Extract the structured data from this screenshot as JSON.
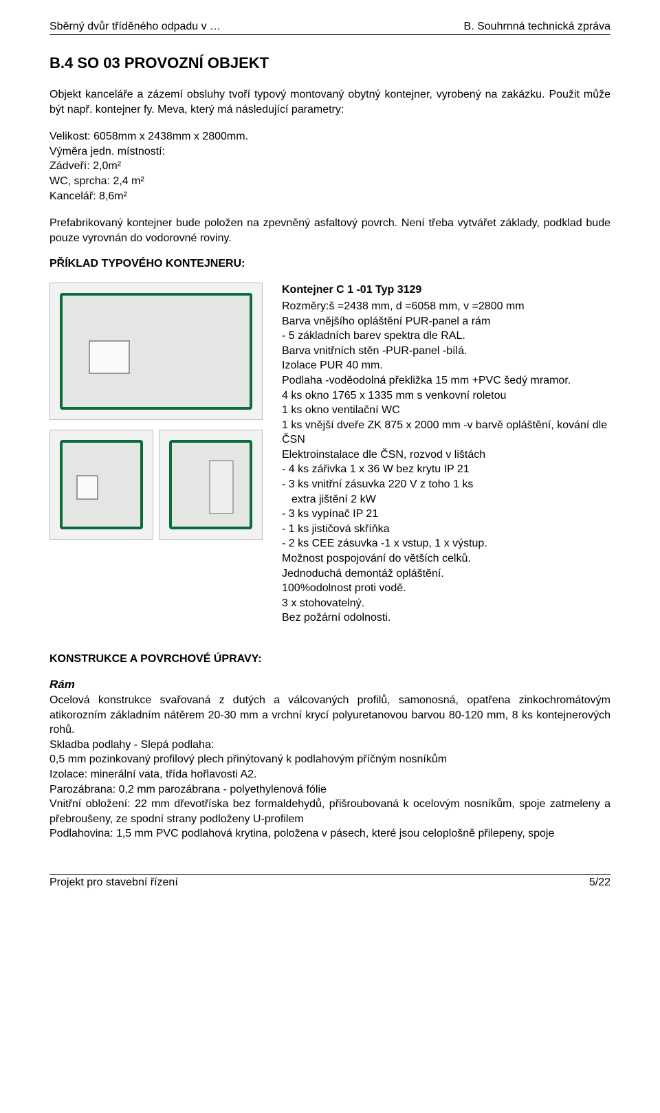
{
  "header": {
    "left": "Sběrný dvůr tříděného odpadu v …",
    "right": "B. Souhrnná technická zpráva"
  },
  "section_title": "B.4   SO 03  PROVOZNÍ OBJEKT",
  "intro": "Objekt kanceláře a zázemí obsluhy tvoří typový montovaný obytný kontejner, vyrobený na zakázku. Použit může být např. kontejner fy. Meva, který má následující parametry:",
  "dims_line": "Velikost:  6058mm x 2438mm x 2800mm.",
  "rooms_head": "Výměra jedn. místností:",
  "rooms": [
    "Zádveří: 2,0m²",
    "WC, sprcha: 2,4 m²",
    "Kancelář: 8,6m²"
  ],
  "placement": "Prefabrikovaný kontejner bude položen na zpevněný asfaltový povrch. Není třeba vytvářet základy, podklad bude pouze vyrovnán do vodorovné roviny.",
  "example_head": "PŘÍKLAD TYPOVÉHO KONTEJNERU:",
  "spec": {
    "title": "Kontejner C 1 -01 Typ 3129",
    "lines": [
      "Rozměry:š =2438 mm, d =6058 mm, v =2800 mm",
      "Barva vnějšího opláštění PUR-panel a rám",
      "- 5 základních barev spektra dle RAL.",
      "Barva vnitřních stěn -PUR-panel -bílá.",
      "Izolace PUR 40 mm.",
      "Podlaha -voděodolná překližka 15 mm +PVC šedý mramor.",
      "4 ks okno 1765 x 1335 mm s venkovní roletou",
      "1 ks okno ventilační WC",
      "1 ks vnější dveře ZK 875 x 2000 mm -v barvě opláštění, kování dle ČSN",
      "Elektroinstalace dle ČSN, rozvod v lištách",
      "- 4 ks zářivka 1 x 36 W bez krytu IP 21",
      "- 3 ks vnitřní zásuvka 220 V z toho 1 ks",
      "  extra jištění 2 kW",
      "- 3 ks vypínač IP 21",
      "- 1 ks jističová skříňka",
      "- 2 ks CEE zásuvka -1 x vstup, 1 x výstup.",
      "Možnost pospojování do větších celků.",
      "Jednoduchá demontáž opláštění.",
      "100%odolnost proti vodě.",
      "3 x stohovatelný.",
      "Bez požární odolnosti."
    ],
    "indented_idx": 12
  },
  "konstr_head": "KONSTRUKCE A POVRCHOVÉ ÚPRAVY:",
  "ram": {
    "label": "Rám",
    "p1": "Ocelová konstrukce svařovaná z dutých a válcovaných profilů, samonosná, opatřena zinkochromátovým atikorozním základním nátěrem 20-30 mm a vrchní krycí polyuretanovou barvou 80-120 mm, 8 ks kontejnerových rohů.",
    "p2": "Skladba podlahy - Slepá podlaha:",
    "p3": "0,5 mm pozinkovaný profilový plech přinýtovaný k podlahovým příčným nosníkům",
    "p4": "Izolace: minerální vata, třída hořlavosti A2.",
    "p5": "Parozábrana: 0,2 mm parozábrana - polyethylenová fólie",
    "p6": "Vnitřní obložení: 22 mm dřevotříska bez formaldehydů, přišroubovaná k ocelovým nosníkům, spoje zatmeleny a přebroušeny, ze spodní strany podloženy U-profilem",
    "p7": "Podlahovina: 1,5 mm PVC podlahová krytina, položena v pásech, které jsou celoplošně přilepeny, spoje"
  },
  "footer": {
    "left": "Projekt pro stavební řízení",
    "right": "5/22"
  },
  "colors": {
    "frame_green": "#0a6b3b",
    "panel_grey": "#e4e6e4"
  }
}
